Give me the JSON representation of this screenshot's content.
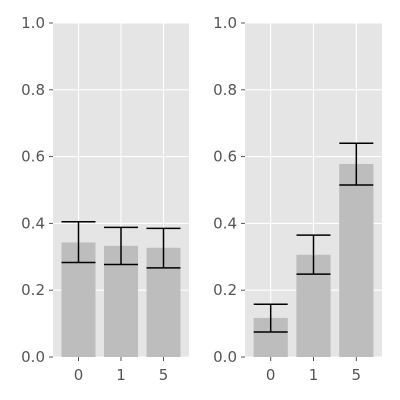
{
  "style": {
    "panel_bg": "#e5e5e5",
    "grid_color": "#ffffff",
    "bar_color": "#bdbdbd",
    "errorbar_color": "#000000",
    "tick_color": "#555555"
  },
  "chart_data": [
    {
      "type": "bar",
      "categories": [
        "0",
        "1",
        "5"
      ],
      "values": [
        0.343,
        0.333,
        0.327
      ],
      "error_low": [
        0.283,
        0.277,
        0.267
      ],
      "error_high": [
        0.405,
        0.388,
        0.385
      ],
      "ylim": [
        0,
        1
      ],
      "yticks": [
        "0.0",
        "0.2",
        "0.4",
        "0.6",
        "0.8",
        "1.0"
      ],
      "grid": true
    },
    {
      "type": "bar",
      "categories": [
        "0",
        "1",
        "5"
      ],
      "values": [
        0.117,
        0.306,
        0.578
      ],
      "error_low": [
        0.075,
        0.248,
        0.515
      ],
      "error_high": [
        0.158,
        0.365,
        0.64
      ],
      "ylim": [
        0,
        1
      ],
      "yticks": [
        "0.0",
        "0.2",
        "0.4",
        "0.6",
        "0.8",
        "1.0"
      ],
      "grid": true
    }
  ]
}
